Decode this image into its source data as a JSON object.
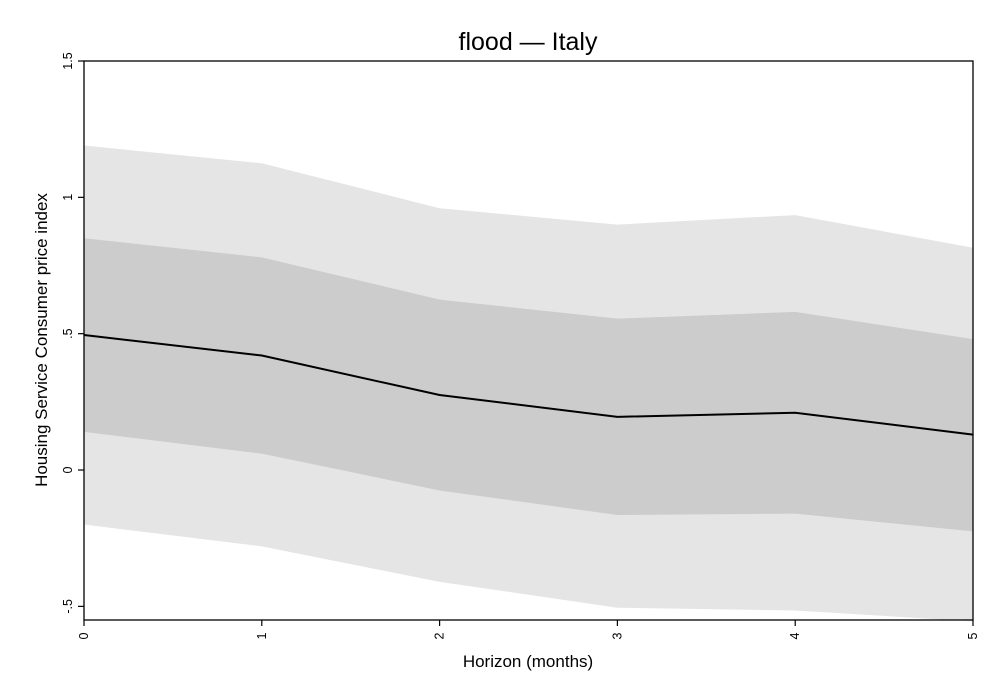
{
  "chart_data": {
    "type": "line",
    "title": "flood — Italy",
    "xlabel": "Horizon (months)",
    "ylabel": "Housing Service Consumer price index",
    "x": [
      0,
      1,
      2,
      3,
      4,
      5
    ],
    "xlim": [
      0,
      5
    ],
    "ylim": [
      -0.55,
      1.5
    ],
    "xticks": [
      0,
      1,
      2,
      3,
      4,
      5
    ],
    "xtick_labels": [
      "0",
      "1",
      "2",
      "3",
      "4",
      "5"
    ],
    "yticks": [
      -0.5,
      0,
      0.5,
      1,
      1.5
    ],
    "ytick_labels": [
      "-.5",
      "0",
      ".5",
      "1",
      "1.5"
    ],
    "grid": false,
    "series": [
      {
        "role": "estimate",
        "color": "#000000",
        "values": [
          0.495,
          0.42,
          0.275,
          0.195,
          0.21,
          0.13
        ]
      }
    ],
    "bands": [
      {
        "role": "outer",
        "color": "#e5e5e5",
        "lower": [
          -0.2,
          -0.28,
          -0.41,
          -0.505,
          -0.515,
          -0.555
        ],
        "upper": [
          1.19,
          1.125,
          0.96,
          0.9,
          0.935,
          0.815
        ]
      },
      {
        "role": "inner",
        "color": "#cccccc",
        "lower": [
          0.14,
          0.06,
          -0.075,
          -0.165,
          -0.16,
          -0.225
        ],
        "upper": [
          0.85,
          0.78,
          0.625,
          0.555,
          0.58,
          0.48
        ]
      }
    ]
  }
}
